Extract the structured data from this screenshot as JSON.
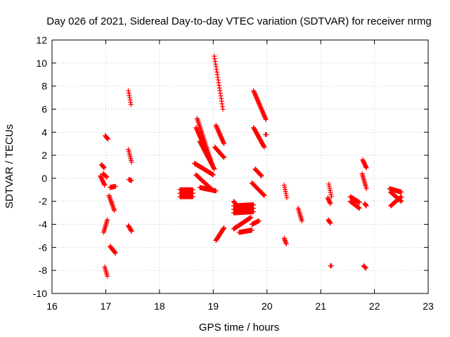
{
  "chart_data": {
    "type": "scatter",
    "title": "Day 026 of 2021, Sidereal Day-to-day VTEC variation (SDTVAR) for receiver nrmg",
    "xlabel": "GPS time / hours",
    "ylabel": "SDTVAR / TECUs",
    "xlim": [
      16,
      23
    ],
    "ylim": [
      -10,
      12
    ],
    "xticks": [
      16,
      17,
      18,
      19,
      20,
      21,
      22,
      23
    ],
    "yticks": [
      -10,
      -8,
      -6,
      -4,
      -2,
      0,
      2,
      4,
      6,
      8,
      10,
      12
    ],
    "grid": true,
    "marker": "+",
    "color": "#ff0000",
    "segments": [
      {
        "x": [
          16.92,
          16.97
        ],
        "y": [
          1.2,
          0.9
        ]
      },
      {
        "x": [
          16.9,
          16.98
        ],
        "y": [
          0.2,
          -0.6
        ]
      },
      {
        "x": [
          16.95,
          17.02
        ],
        "y": [
          0.4,
          0.1
        ]
      },
      {
        "x": [
          16.99,
          17.04
        ],
        "y": [
          3.7,
          3.4
        ]
      },
      {
        "x": [
          16.96,
          17.03
        ],
        "y": [
          -4.7,
          -3.6
        ]
      },
      {
        "x": [
          16.98,
          17.03
        ],
        "y": [
          -7.7,
          -8.5
        ]
      },
      {
        "x": [
          17.08,
          17.18
        ],
        "y": [
          -0.8,
          -0.7
        ]
      },
      {
        "x": [
          17.06,
          17.16
        ],
        "y": [
          -1.5,
          -2.8
        ]
      },
      {
        "x": [
          17.08,
          17.18
        ],
        "y": [
          -5.9,
          -6.5
        ]
      },
      {
        "x": [
          17.42,
          17.47
        ],
        "y": [
          7.6,
          6.4
        ]
      },
      {
        "x": [
          17.42,
          17.48
        ],
        "y": [
          2.5,
          1.4
        ]
      },
      {
        "x": [
          17.43,
          17.48
        ],
        "y": [
          -0.1,
          -0.2
        ]
      },
      {
        "x": [
          17.42,
          17.48
        ],
        "y": [
          -4.1,
          -4.6
        ]
      },
      {
        "x": [
          18.38,
          18.62
        ],
        "y": [
          -1.0,
          -1.0
        ]
      },
      {
        "x": [
          18.38,
          18.62
        ],
        "y": [
          -1.3,
          -1.3
        ]
      },
      {
        "x": [
          18.38,
          18.62
        ],
        "y": [
          -1.6,
          -1.6
        ]
      },
      {
        "x": [
          18.7,
          18.95
        ],
        "y": [
          5.2,
          1.6
        ]
      },
      {
        "x": [
          18.68,
          18.98
        ],
        "y": [
          4.4,
          1.2
        ]
      },
      {
        "x": [
          18.75,
          19.02
        ],
        "y": [
          3.2,
          0.8
        ]
      },
      {
        "x": [
          18.65,
          19.0
        ],
        "y": [
          1.3,
          0.3
        ]
      },
      {
        "x": [
          18.68,
          18.98
        ],
        "y": [
          0.3,
          -1.0
        ]
      },
      {
        "x": [
          18.75,
          19.05
        ],
        "y": [
          -0.8,
          -1.1
        ]
      },
      {
        "x": [
          19.02,
          19.18
        ],
        "y": [
          10.6,
          6.0
        ]
      },
      {
        "x": [
          19.05,
          19.2
        ],
        "y": [
          4.6,
          3.0
        ]
      },
      {
        "x": [
          19.03,
          19.2
        ],
        "y": [
          2.7,
          1.8
        ]
      },
      {
        "x": [
          19.05,
          19.2
        ],
        "y": [
          -5.4,
          -4.3
        ]
      },
      {
        "x": [
          19.38,
          19.48
        ],
        "y": [
          -2.0,
          -2.6
        ]
      },
      {
        "x": [
          19.38,
          19.75
        ],
        "y": [
          -2.4,
          -2.3
        ]
      },
      {
        "x": [
          19.38,
          19.75
        ],
        "y": [
          -2.7,
          -2.6
        ]
      },
      {
        "x": [
          19.38,
          19.75
        ],
        "y": [
          -3.0,
          -2.9
        ]
      },
      {
        "x": [
          19.38,
          19.7
        ],
        "y": [
          -4.4,
          -3.4
        ]
      },
      {
        "x": [
          19.48,
          19.72
        ],
        "y": [
          -4.7,
          -4.5
        ]
      },
      {
        "x": [
          19.72,
          19.85
        ],
        "y": [
          -4.0,
          -3.7
        ]
      },
      {
        "x": [
          19.75,
          19.98
        ],
        "y": [
          7.6,
          5.1
        ]
      },
      {
        "x": [
          19.75,
          19.95
        ],
        "y": [
          4.4,
          2.7
        ]
      },
      {
        "x": [
          19.78,
          19.9
        ],
        "y": [
          0.8,
          0.2
        ]
      },
      {
        "x": [
          19.97,
          19.99
        ],
        "y": [
          3.8,
          3.8
        ]
      },
      {
        "x": [
          19.72,
          19.95
        ],
        "y": [
          -0.4,
          -1.5
        ]
      },
      {
        "x": [
          20.32,
          20.37
        ],
        "y": [
          -0.6,
          -1.7
        ]
      },
      {
        "x": [
          20.32,
          20.36
        ],
        "y": [
          -5.2,
          -5.7
        ]
      },
      {
        "x": [
          20.58,
          20.65
        ],
        "y": [
          -2.6,
          -3.7
        ]
      },
      {
        "x": [
          21.15,
          21.2
        ],
        "y": [
          -0.5,
          -1.6
        ]
      },
      {
        "x": [
          21.13,
          21.18
        ],
        "y": [
          -1.7,
          -2.2
        ]
      },
      {
        "x": [
          21.14,
          21.18
        ],
        "y": [
          -3.6,
          -3.9
        ]
      },
      {
        "x": [
          21.18,
          21.2
        ],
        "y": [
          -7.6,
          -7.6
        ]
      },
      {
        "x": [
          21.55,
          21.72
        ],
        "y": [
          -1.6,
          -2.1
        ]
      },
      {
        "x": [
          21.55,
          21.72
        ],
        "y": [
          -2.0,
          -2.6
        ]
      },
      {
        "x": [
          21.78,
          21.85
        ],
        "y": [
          1.6,
          0.9
        ]
      },
      {
        "x": [
          21.77,
          21.85
        ],
        "y": [
          0.4,
          -0.9
        ]
      },
      {
        "x": [
          21.82,
          21.85
        ],
        "y": [
          -2.2,
          -2.4
        ]
      },
      {
        "x": [
          21.8,
          21.84
        ],
        "y": [
          -7.6,
          -7.8
        ]
      },
      {
        "x": [
          22.28,
          22.5
        ],
        "y": [
          -0.9,
          -1.2
        ]
      },
      {
        "x": [
          22.3,
          22.5
        ],
        "y": [
          -1.2,
          -2.0
        ]
      },
      {
        "x": [
          22.3,
          22.5
        ],
        "y": [
          -2.4,
          -1.6
        ]
      }
    ]
  }
}
